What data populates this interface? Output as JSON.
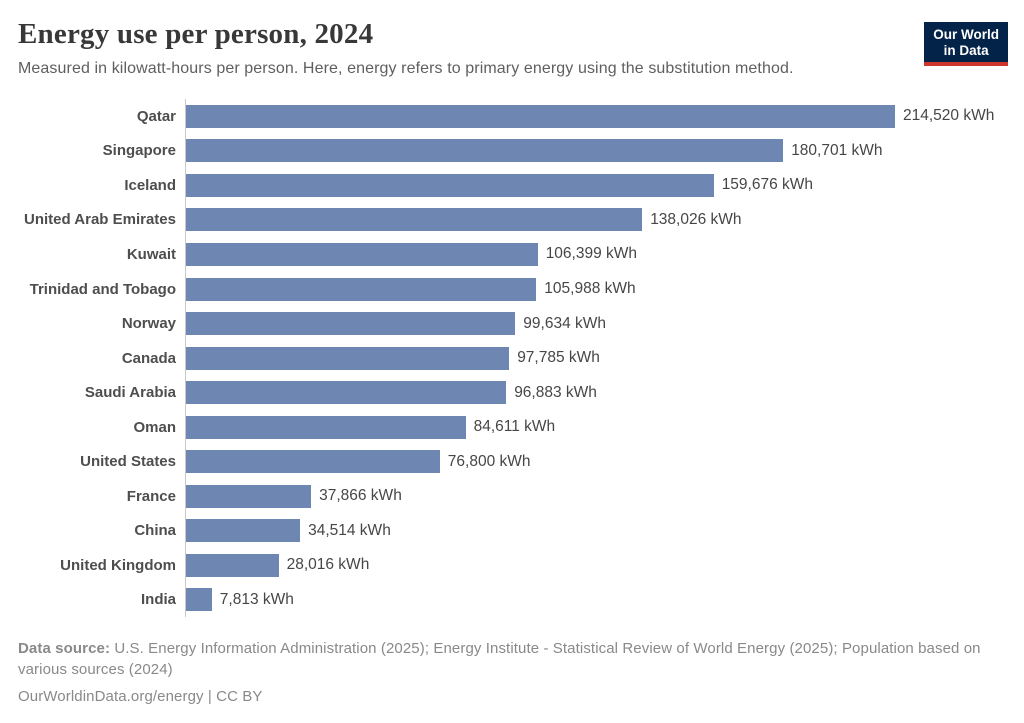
{
  "header": {
    "title": "Energy use per person, 2024",
    "subtitle": "Measured in kilowatt-hours per person. Here, energy refers to primary energy using the substitution method."
  },
  "logo": {
    "line1": "Our World",
    "line2": "in Data"
  },
  "chart_data": {
    "type": "bar",
    "orientation": "horizontal",
    "title": "Energy use per person, 2024",
    "unit": "kWh",
    "xlim": [
      0,
      214520
    ],
    "grid": false,
    "value_labels_position": "end-of-bar",
    "categories": [
      "Qatar",
      "Singapore",
      "Iceland",
      "United Arab Emirates",
      "Kuwait",
      "Trinidad and Tobago",
      "Norway",
      "Canada",
      "Saudi Arabia",
      "Oman",
      "United States",
      "France",
      "China",
      "United Kingdom",
      "India"
    ],
    "values": [
      214520,
      180701,
      159676,
      138026,
      106399,
      105988,
      99634,
      97785,
      96883,
      84611,
      76800,
      37866,
      34514,
      28016,
      7813
    ],
    "value_labels": [
      "214,520 kWh",
      "180,701 kWh",
      "159,676 kWh",
      "138,026 kWh",
      "106,399 kWh",
      "105,988 kWh",
      "99,634 kWh",
      "97,785 kWh",
      "96,883 kWh",
      "84,611 kWh",
      "76,800 kWh",
      "37,866 kWh",
      "34,514 kWh",
      "28,016 kWh",
      "7,813 kWh"
    ]
  },
  "footer": {
    "datasource_label": "Data source:",
    "datasource": " U.S. Energy Information Administration (2025); Energy Institute - Statistical Review of World Energy (2025); Population based on various sources (2024)",
    "attribution": "OurWorldinData.org/energy | CC BY"
  },
  "colors": {
    "bar": "#6e87b2",
    "logo_background": "#042349",
    "logo_accent": "#d0342c",
    "axis_line": "#c9c9c9"
  }
}
